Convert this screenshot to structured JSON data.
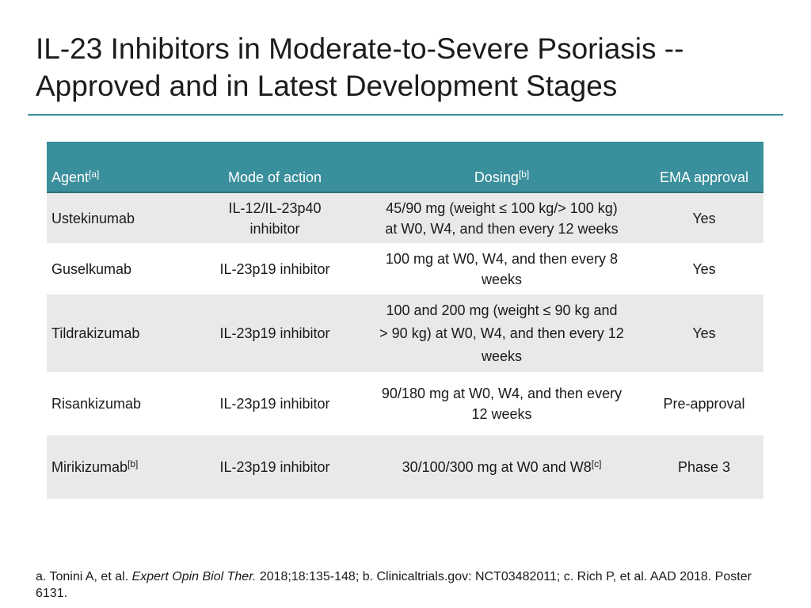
{
  "title": {
    "line1": "IL-23 Inhibitors in Moderate-to-Severe Psoriasis --",
    "line2": "Approved and in Latest Development Stages"
  },
  "table": {
    "headers": {
      "agent": "Agent",
      "agent_sup": "[a]",
      "mode": "Mode of action",
      "dosing": "Dosing",
      "dosing_sup": "[b]",
      "ema": "EMA approval"
    },
    "rows": [
      {
        "agent": "Ustekinumab",
        "mode_line1": "IL-12/IL-23p40",
        "mode_line2": "inhibitor",
        "dosing_line1": "45/90 mg (weight ≤ 100 kg/> 100 kg)",
        "dosing_line2": "at W0, W4, and then every 12 weeks",
        "ema": "Yes"
      },
      {
        "agent": "Guselkumab",
        "mode": "IL-23p19 inhibitor",
        "dosing_line1": "100 mg at W0, W4, and then every 8",
        "dosing_line2": "weeks",
        "ema": "Yes"
      },
      {
        "agent": "Tildrakizumab",
        "mode": "IL-23p19 inhibitor",
        "dosing_line1": "100 and 200 mg (weight ≤ 90 kg and",
        "dosing_line2": "> 90 kg) at W0, W4, and then every 12",
        "dosing_line3": "weeks",
        "ema": "Yes"
      },
      {
        "agent": "Risankizumab",
        "mode": "IL-23p19 inhibitor",
        "dosing_line1": "90/180 mg at W0, W4, and then every",
        "dosing_line2": "12 weeks",
        "ema": "Pre-approval"
      },
      {
        "agent": "Mirikizumab",
        "agent_sup": "[b]",
        "mode": "IL-23p19 inhibitor",
        "dosing": "30/100/300 mg at W0 and W8",
        "dosing_sup": "[c]",
        "ema": "Phase 3"
      }
    ]
  },
  "footnote": {
    "part1": "a. Tonini A, et al. ",
    "journal": "Expert Opin Biol Ther.",
    "part2": " 2018;18:135-148; b. Clinicaltrials.gov: NCT03482011; c. Rich P, et al. AAD 2018. Poster 6131."
  }
}
